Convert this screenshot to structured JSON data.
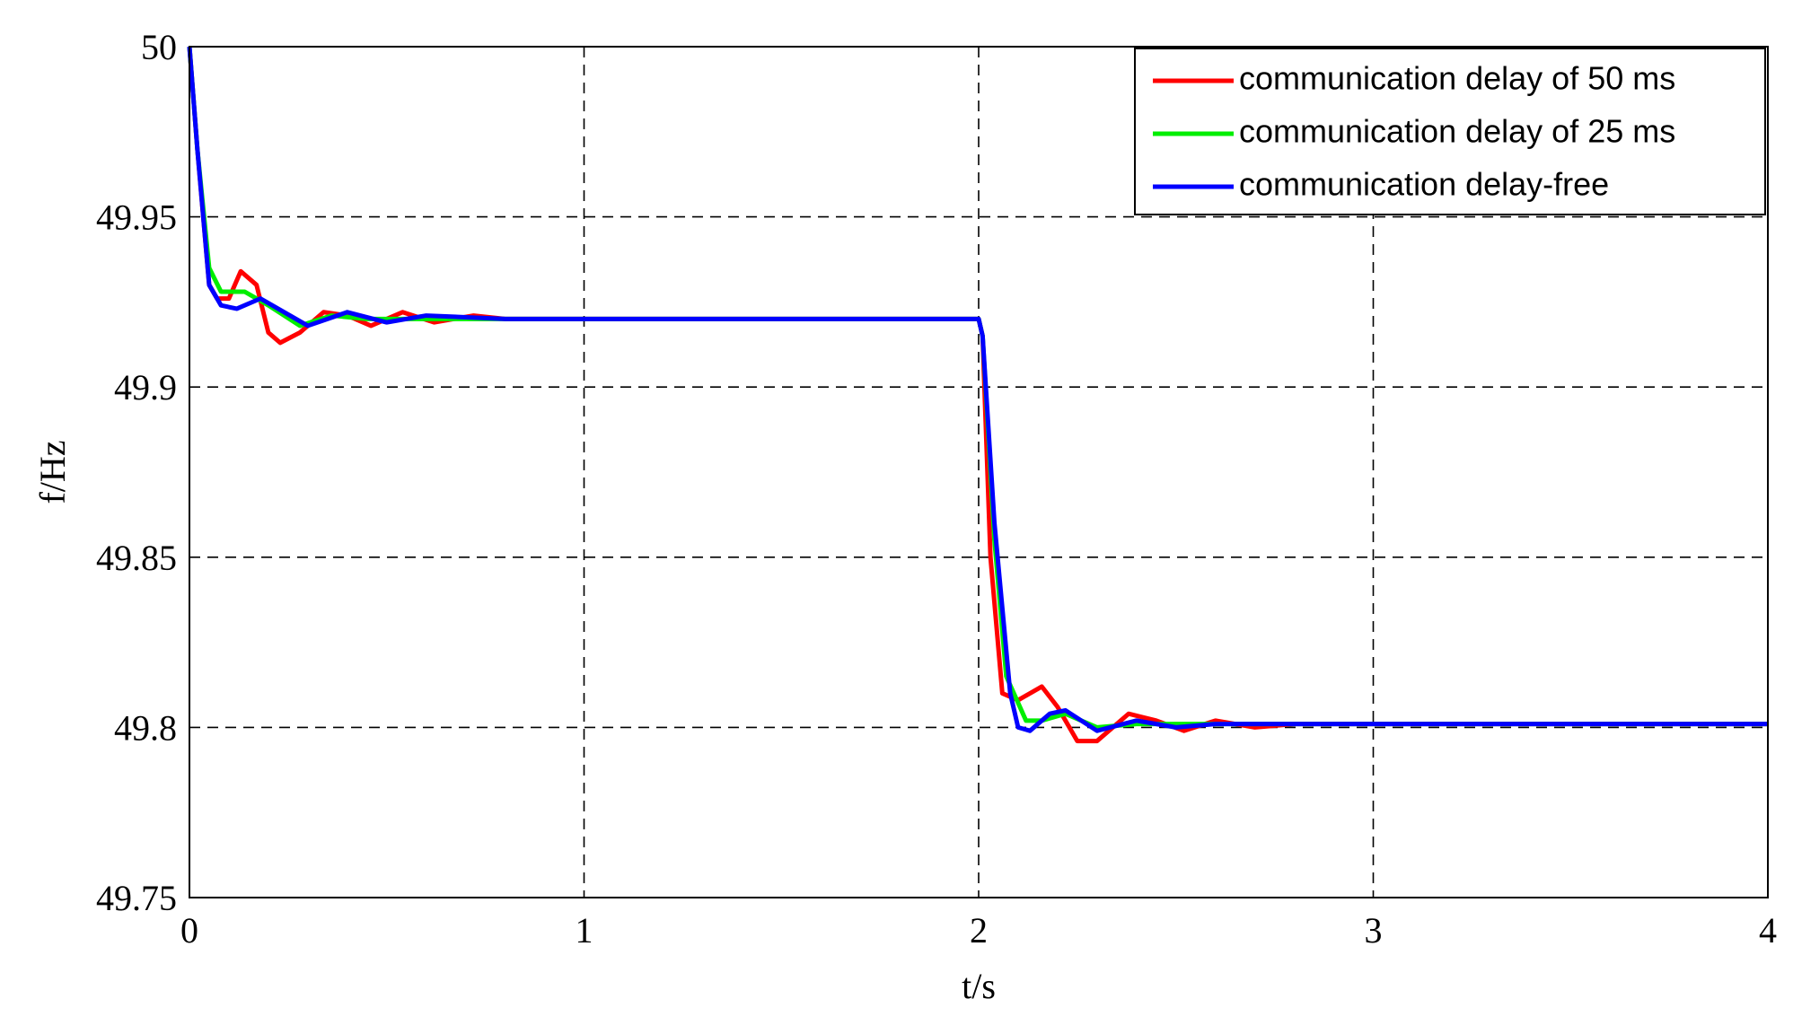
{
  "chart_data": {
    "type": "line",
    "xlabel": "t/s",
    "ylabel": "f/Hz",
    "xlim": [
      0,
      4
    ],
    "xticks": [
      0,
      1,
      2,
      3,
      4
    ],
    "ylim": [
      49.75,
      50
    ],
    "yticks": [
      49.75,
      49.8,
      49.85,
      49.9,
      49.95,
      50
    ],
    "grid": true,
    "legend": "upper right",
    "series": [
      {
        "name": "communication delay of 50 ms",
        "color": "#ff0000",
        "x": [
          0,
          0.02,
          0.05,
          0.07,
          0.1,
          0.13,
          0.17,
          0.2,
          0.23,
          0.28,
          0.34,
          0.4,
          0.46,
          0.54,
          0.62,
          0.72,
          0.8,
          1,
          2,
          2.01,
          2.03,
          2.06,
          2.1,
          2.16,
          2.2,
          2.25,
          2.3,
          2.38,
          2.45,
          2.52,
          2.6,
          2.7,
          2.8,
          4
        ],
        "values": [
          50,
          49.97,
          49.93,
          49.926,
          49.926,
          49.934,
          49.93,
          49.916,
          49.913,
          49.916,
          49.922,
          49.921,
          49.918,
          49.922,
          49.919,
          49.921,
          49.92,
          49.92,
          49.92,
          49.915,
          49.85,
          49.81,
          49.808,
          49.812,
          49.806,
          49.796,
          49.796,
          49.804,
          49.802,
          49.799,
          49.802,
          49.8,
          49.801,
          49.801
        ]
      },
      {
        "name": "communication delay of 25 ms",
        "color": "#00ee00",
        "x": [
          0,
          0.02,
          0.05,
          0.08,
          0.14,
          0.2,
          0.28,
          0.36,
          0.45,
          0.6,
          1,
          2,
          2.01,
          2.04,
          2.07,
          2.12,
          2.16,
          2.22,
          2.3,
          2.4,
          2.6,
          4
        ],
        "values": [
          50,
          49.97,
          49.935,
          49.928,
          49.928,
          49.924,
          49.918,
          49.921,
          49.92,
          49.92,
          49.92,
          49.92,
          49.915,
          49.855,
          49.815,
          49.802,
          49.802,
          49.804,
          49.8,
          49.801,
          49.801,
          49.801
        ]
      },
      {
        "name": "communication delay-free",
        "color": "#0000ff",
        "x": [
          0,
          0.02,
          0.05,
          0.08,
          0.12,
          0.18,
          0.24,
          0.3,
          0.4,
          0.5,
          0.6,
          0.8,
          1,
          2,
          2.01,
          2.04,
          2.08,
          2.1,
          2.13,
          2.18,
          2.22,
          2.3,
          2.4,
          2.5,
          2.6,
          3,
          4
        ],
        "values": [
          50,
          49.97,
          49.93,
          49.924,
          49.923,
          49.926,
          49.922,
          49.918,
          49.922,
          49.919,
          49.921,
          49.92,
          49.92,
          49.92,
          49.915,
          49.86,
          49.81,
          49.8,
          49.799,
          49.804,
          49.805,
          49.799,
          49.802,
          49.8,
          49.801,
          49.801,
          49.801
        ]
      }
    ]
  }
}
